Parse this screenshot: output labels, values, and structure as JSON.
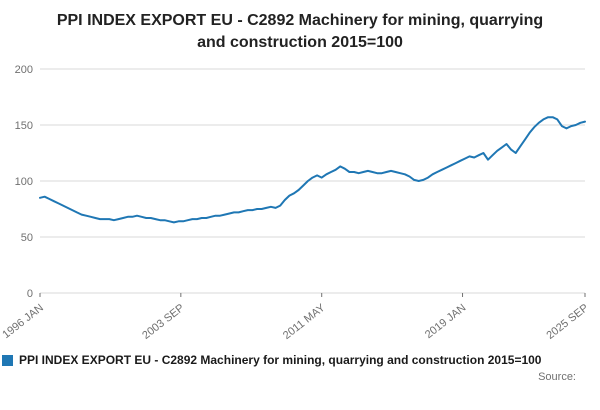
{
  "title": "PPI INDEX EXPORT EU - C2892 Machinery for mining, quarrying and construction 2015=100",
  "legend": {
    "label": "PPI INDEX EXPORT EU - C2892 Machinery for mining, quarrying and construction 2015=100"
  },
  "source": {
    "label": "Source:"
  },
  "colors": {
    "line": "#1f77b4",
    "grid": "#d9d9d9",
    "tick_text": "#707070",
    "title_text": "#222222"
  },
  "chart_data": {
    "type": "line",
    "title": "PPI INDEX EXPORT EU - C2892 Machinery for mining, quarrying and construction 2015=100",
    "xlabel": "",
    "ylabel": "",
    "ylim": [
      0,
      200
    ],
    "yticks": [
      0,
      50,
      100,
      150,
      200
    ],
    "grid": "horizontal",
    "legend_position": "bottom",
    "x_start": "1996 JAN",
    "x_end": "2025 SEP",
    "xticks": [
      {
        "label": "1996 JAN",
        "pos": 0
      },
      {
        "label": "2003 SEP",
        "pos": 0.2584
      },
      {
        "label": "2011 MAY",
        "pos": 0.5169
      },
      {
        "label": "2019 JAN",
        "pos": 0.7753
      },
      {
        "label": "2025 SEP",
        "pos": 1
      }
    ],
    "series": [
      {
        "name": "PPI INDEX EXPORT EU - C2892 Machinery for mining, quarrying and construction 2015=100",
        "values": [
          85,
          86,
          84,
          82,
          80,
          78,
          76,
          74,
          72,
          70,
          69,
          68,
          67,
          66,
          66,
          66,
          65,
          66,
          67,
          68,
          68,
          69,
          68,
          67,
          67,
          66,
          65,
          65,
          64,
          63,
          64,
          64,
          65,
          66,
          66,
          67,
          67,
          68,
          69,
          69,
          70,
          71,
          72,
          72,
          73,
          74,
          74,
          75,
          75,
          76,
          77,
          76,
          78,
          83,
          87,
          89,
          92,
          96,
          100,
          103,
          105,
          103,
          106,
          108,
          110,
          113,
          111,
          108,
          108,
          107,
          108,
          109,
          108,
          107,
          107,
          108,
          109,
          108,
          107,
          106,
          104,
          101,
          100,
          101,
          103,
          106,
          108,
          110,
          112,
          114,
          116,
          118,
          120,
          122,
          121,
          123,
          125,
          119,
          123,
          127,
          130,
          133,
          128,
          125,
          131,
          137,
          143,
          148,
          152,
          155,
          157,
          157,
          155,
          149,
          147,
          149,
          150,
          152,
          153
        ]
      }
    ]
  }
}
